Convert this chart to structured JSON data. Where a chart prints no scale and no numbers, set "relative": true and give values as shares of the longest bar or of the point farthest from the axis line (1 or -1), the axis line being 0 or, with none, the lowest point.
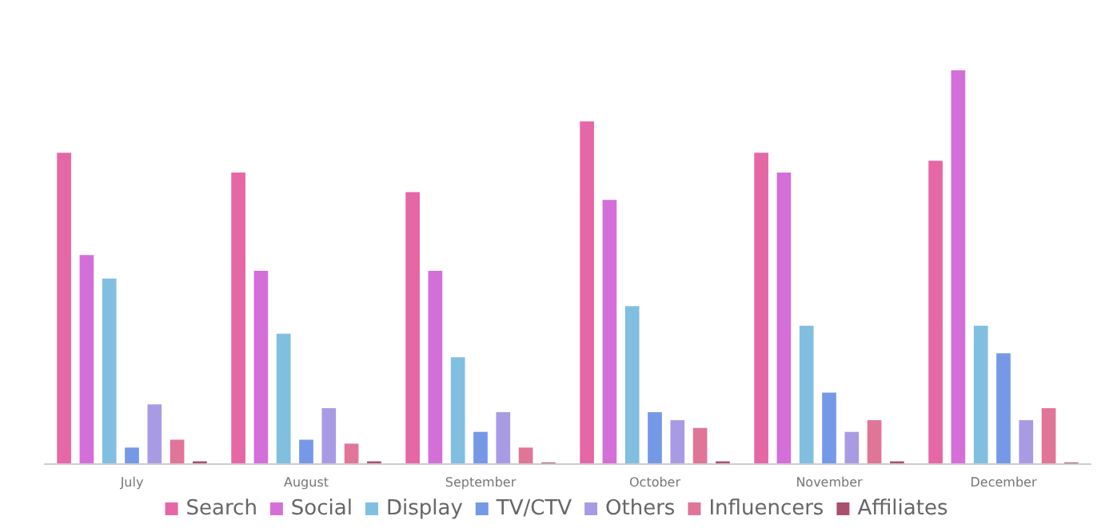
{
  "chart_data": {
    "type": "bar",
    "relative": true,
    "categories": [
      "July",
      "August",
      "September",
      "October",
      "November",
      "December"
    ],
    "series": [
      {
        "name": "Search",
        "color": "#e667a6",
        "values": [
          0.79,
          0.74,
          0.69,
          0.87,
          0.79,
          0.77
        ]
      },
      {
        "name": "Social",
        "color": "#d46fd9",
        "values": [
          0.53,
          0.49,
          0.49,
          0.67,
          0.74,
          1
        ]
      },
      {
        "name": "Display",
        "color": "#80bfe0",
        "values": [
          0.47,
          0.33,
          0.27,
          0.4,
          0.35,
          0.35
        ]
      },
      {
        "name": "TV/CTV",
        "color": "#7599e6",
        "values": [
          0.04,
          0.06,
          0.08,
          0.13,
          0.18,
          0.28
        ]
      },
      {
        "name": "Others",
        "color": "#a99be3",
        "values": [
          0.15,
          0.14,
          0.13,
          0.11,
          0.08,
          0.11
        ]
      },
      {
        "name": "Influencers",
        "color": "#e07598",
        "values": [
          0.06,
          0.05,
          0.04,
          0.09,
          0.11,
          0.14
        ]
      },
      {
        "name": "Affiliates",
        "color": "#a8506e",
        "values": [
          0.005,
          0.005,
          0.002,
          0.005,
          0.005,
          0.002
        ]
      }
    ],
    "legend": "bottom"
  }
}
